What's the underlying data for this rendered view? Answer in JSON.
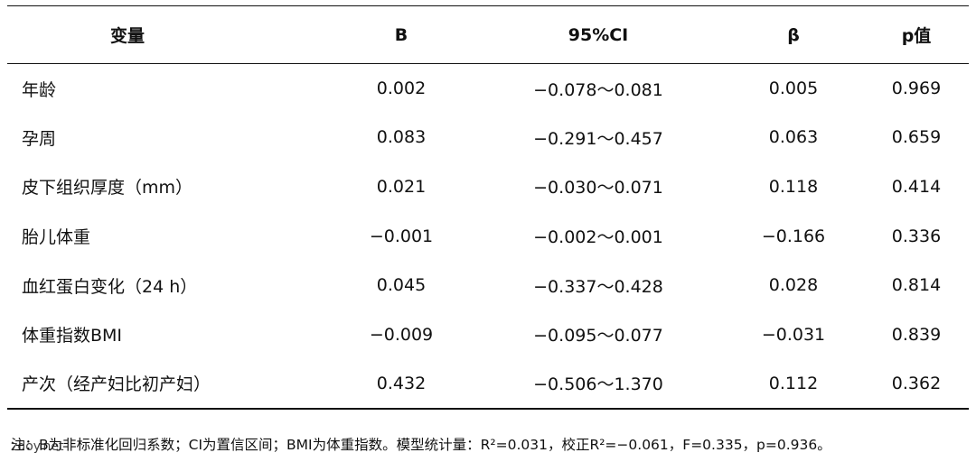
{
  "table": {
    "headers": [
      "变量",
      "B",
      "95%CI",
      "β",
      "p值"
    ],
    "rows": [
      [
        "年龄",
        "0.002",
        "−0.078～0.081",
        "0.005",
        "0.969"
      ],
      [
        "孕周",
        "0.083",
        "−0.291～0.457",
        "0.063",
        "0.659"
      ],
      [
        "皮下组织厚度（mm）",
        "0.021",
        "−0.030～0.071",
        "0.118",
        "0.414"
      ],
      [
        "胎儿体重",
        "−0.001",
        "−0.002～0.001",
        "−0.166",
        "0.336"
      ],
      [
        "血红蛋白变化（24 h）",
        "0.045",
        "−0.337～0.428",
        "0.028",
        "0.814"
      ],
      [
        "体重指数BMI",
        "−0.009",
        "−0.095～0.077",
        "−0.031",
        "0.839"
      ],
      [
        "产次（经产妇比初产妇）",
        "0.432",
        "−0.506～1.370",
        "0.112",
        "0.362"
      ]
    ]
  },
  "note": "注：B为非标准化回归系数；CI为置信区间；BMI为体重指数。模型统计量：R²=0.031，校正R²=−0.061，F=0.335，p=0.936。",
  "watermark": "zdoy.net"
}
